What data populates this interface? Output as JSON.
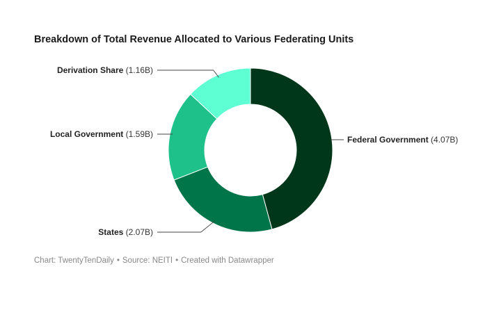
{
  "chart_data": {
    "type": "pie",
    "variant": "donut",
    "title": "Breakdown of Total Revenue Allocated to Various Federating Units",
    "slices": [
      {
        "name": "Federal Government",
        "value": 4.07,
        "value_label": "(4.07B)",
        "color": "#00361a"
      },
      {
        "name": "States",
        "value": 2.07,
        "value_label": "(2.07B)",
        "color": "#00754a"
      },
      {
        "name": "Local Government",
        "value": 1.59,
        "value_label": "(1.59B)",
        "color": "#1fc18b"
      },
      {
        "name": "Derivation Share",
        "value": 1.16,
        "value_label": "(1.16B)",
        "color": "#5fffd4"
      }
    ],
    "legend": "none"
  },
  "footer": {
    "chart_credit": "Chart: TwentyTenDaily",
    "source": "Source: NEITI",
    "created_with": "Created with Datawrapper",
    "separator": "•"
  }
}
